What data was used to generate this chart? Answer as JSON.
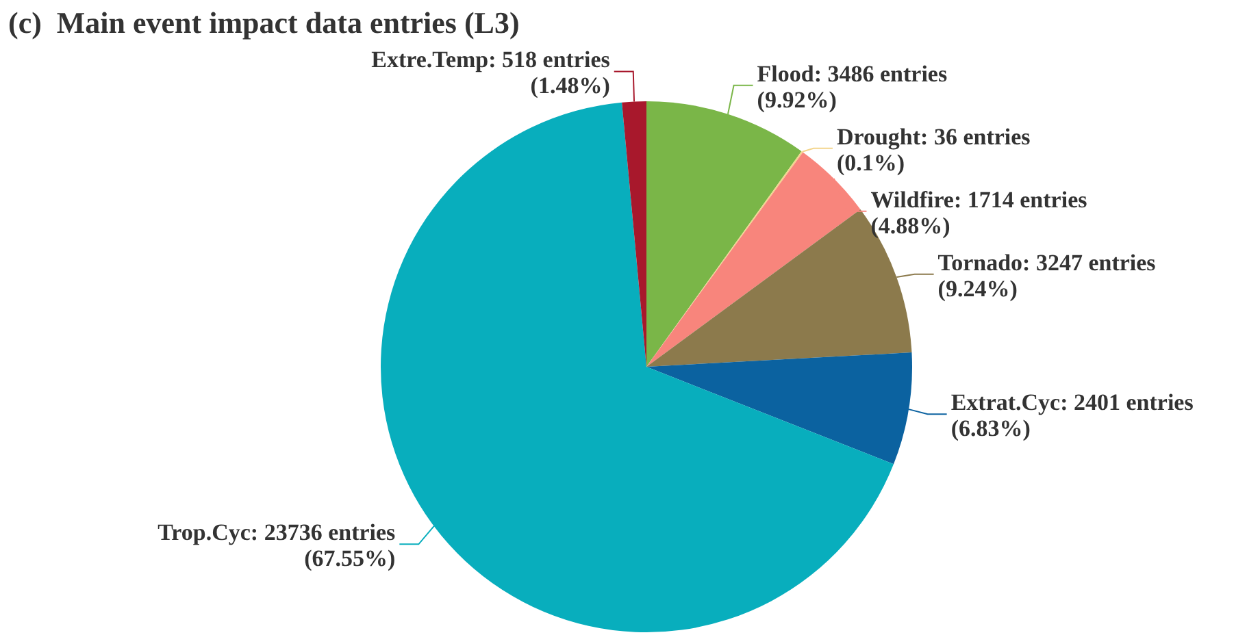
{
  "chart_data": {
    "type": "pie",
    "title": "(c)  Main event impact data entries (L3)",
    "categories": [
      "Flood",
      "Drought",
      "Wildfire",
      "Tornado",
      "Extrat.Cyc",
      "Trop.Cyc",
      "Extre.Temp"
    ],
    "values": [
      3486,
      36,
      1714,
      3247,
      2401,
      23736,
      518
    ],
    "value_labels": [
      "3486 entries\n(9.92%)",
      "36 entries\n(0.1%)",
      "1714 entries\n(4.88%)",
      "3247 entries\n(9.24%)",
      "2401 entries\n(6.83%)",
      "23736 entries\n(67.55%)",
      "518 entries\n(1.48%)"
    ],
    "colors": [
      "#7ab648",
      "#f3d58c",
      "#f8857c",
      "#8c7a4c",
      "#0b62a0",
      "#08aebd",
      "#a8182c"
    ]
  }
}
